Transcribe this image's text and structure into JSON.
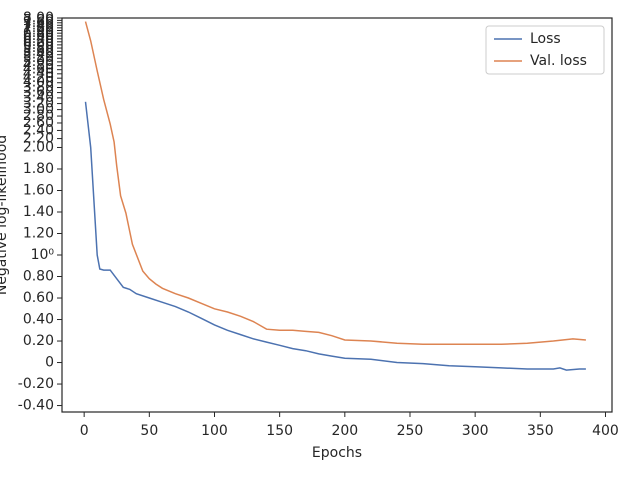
{
  "chart_data": {
    "type": "line",
    "xlabel": "Epochs",
    "ylabel": "Negative log-likelihood",
    "xlim": [
      -17,
      405
    ],
    "xticks": [
      0,
      50,
      100,
      150,
      200,
      250,
      300,
      350,
      400
    ],
    "ylim": [
      -0.46,
      8.0
    ],
    "yscale": "symlog",
    "linthresh": 2,
    "linscale": 1,
    "yticks": [
      {
        "value": -0.4,
        "label": "-0.40"
      },
      {
        "value": -0.2,
        "label": "-0.20"
      },
      0,
      {
        "value": 0.2,
        "label": "0.20"
      },
      {
        "value": 0.4,
        "label": "0.40"
      },
      {
        "value": 0.6,
        "label": "0.60"
      },
      {
        "value": 0.8,
        "label": "0.80"
      },
      {
        "value": 1,
        "label": "10⁰"
      },
      {
        "value": 1.2,
        "label": "1.20"
      },
      {
        "value": 1.4,
        "label": "1.40"
      },
      {
        "value": 1.6,
        "label": "1.60"
      },
      {
        "value": 1.8,
        "label": "1.80"
      },
      {
        "value": 2,
        "label": "2.00"
      },
      {
        "value": 2.2,
        "label": "2.20"
      },
      {
        "value": 2.4,
        "label": "2.40"
      },
      {
        "value": 2.6,
        "label": "2.60"
      },
      {
        "value": 2.8,
        "label": "2.80"
      },
      {
        "value": 3,
        "label": "3.00"
      },
      {
        "value": 3.2,
        "label": "3.20"
      },
      {
        "value": 3.4,
        "label": "3.40"
      },
      {
        "value": 3.6,
        "label": "3.60"
      },
      {
        "value": 3.8,
        "label": "3.80"
      },
      {
        "value": 4,
        "label": "4.00"
      },
      {
        "value": 4.2,
        "label": "4.20"
      },
      {
        "value": 4.4,
        "label": "4.40"
      },
      {
        "value": 4.6,
        "label": "4.60"
      },
      {
        "value": 4.8,
        "label": "4.80"
      },
      {
        "value": 5,
        "label": "5.00"
      },
      {
        "value": 5.2,
        "label": "5.20"
      },
      {
        "value": 5.4,
        "label": "5.40"
      },
      {
        "value": 5.6,
        "label": "5.60"
      },
      {
        "value": 5.8,
        "label": "5.80"
      },
      {
        "value": 6,
        "label": "6.00"
      },
      {
        "value": 6.2,
        "label": "6.20"
      },
      {
        "value": 6.4,
        "label": "6.40"
      },
      {
        "value": 6.6,
        "label": "6.60"
      },
      {
        "value": 6.8,
        "label": "6.80"
      },
      {
        "value": 7,
        "label": "7.00"
      },
      {
        "value": 7.2,
        "label": "7.20"
      },
      {
        "value": 7.4,
        "label": "7.40"
      },
      {
        "value": 7.6,
        "label": "7.60"
      },
      {
        "value": 7.8,
        "label": "7.80"
      },
      {
        "value": 8,
        "label": "8.00"
      }
    ],
    "legend": "upper right",
    "series": [
      {
        "name": "Loss",
        "color": "#4c72b0",
        "x": [
          1,
          5,
          8,
          10,
          12,
          15,
          20,
          25,
          30,
          35,
          40,
          50,
          60,
          70,
          80,
          90,
          100,
          110,
          120,
          130,
          140,
          150,
          160,
          170,
          180,
          190,
          200,
          220,
          240,
          260,
          280,
          300,
          320,
          340,
          360,
          365,
          370,
          380,
          385
        ],
        "values": [
          3.26,
          2.0,
          1.4,
          1.0,
          0.87,
          0.86,
          0.86,
          0.78,
          0.7,
          0.68,
          0.64,
          0.6,
          0.56,
          0.52,
          0.47,
          0.41,
          0.35,
          0.3,
          0.26,
          0.22,
          0.19,
          0.16,
          0.13,
          0.11,
          0.08,
          0.06,
          0.04,
          0.03,
          0.0,
          -0.01,
          -0.03,
          -0.04,
          -0.05,
          -0.06,
          -0.06,
          -0.05,
          -0.07,
          -0.06,
          -0.06
        ]
      },
      {
        "name": "Val. loss",
        "color": "#dd8452",
        "x": [
          1,
          5,
          10,
          15,
          20,
          23,
          25,
          28,
          32,
          37,
          45,
          50,
          55,
          60,
          70,
          80,
          90,
          100,
          110,
          120,
          130,
          140,
          150,
          160,
          170,
          180,
          190,
          200,
          220,
          240,
          260,
          280,
          300,
          320,
          340,
          360,
          375,
          385
        ],
        "values": [
          7.7,
          6.26,
          4.54,
          3.34,
          2.57,
          2.12,
          1.83,
          1.55,
          1.39,
          1.1,
          0.85,
          0.78,
          0.73,
          0.69,
          0.64,
          0.6,
          0.55,
          0.5,
          0.47,
          0.43,
          0.38,
          0.31,
          0.3,
          0.3,
          0.29,
          0.28,
          0.25,
          0.21,
          0.2,
          0.18,
          0.17,
          0.17,
          0.17,
          0.17,
          0.18,
          0.2,
          0.22,
          0.21
        ]
      }
    ]
  }
}
